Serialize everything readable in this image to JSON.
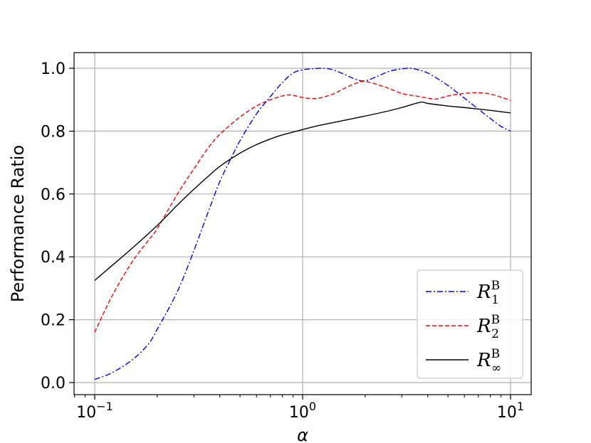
{
  "chart_data": {
    "type": "line",
    "xscale": "log",
    "xlim": [
      0.1,
      10
    ],
    "ylim": [
      0.0,
      1.0
    ],
    "xlabel": "α",
    "ylabel": "Performance Ratio",
    "xticks": [
      {
        "value": 0.1,
        "base": "10",
        "exp": "−1"
      },
      {
        "value": 1,
        "base": "10",
        "exp": "0"
      },
      {
        "value": 10,
        "base": "10",
        "exp": "1"
      }
    ],
    "yticks": [
      {
        "value": 0.0,
        "label": "0.0"
      },
      {
        "value": 0.2,
        "label": "0.2"
      },
      {
        "value": 0.4,
        "label": "0.4"
      },
      {
        "value": 0.6,
        "label": "0.6"
      },
      {
        "value": 0.8,
        "label": "0.8"
      },
      {
        "value": 1.0,
        "label": "1.0"
      }
    ],
    "grid": true,
    "legend_position": "lower-right",
    "series": [
      {
        "name": "R",
        "name_sup": "B",
        "name_sub": "1",
        "color": "#0000ff",
        "style": "dashdot",
        "x": [
          0.1,
          0.12,
          0.15,
          0.18,
          0.2,
          0.25,
          0.3,
          0.35,
          0.4,
          0.45,
          0.5,
          0.6,
          0.7,
          0.8,
          0.9,
          1.0,
          1.1,
          1.25,
          1.4,
          1.6,
          1.8,
          2.0,
          2.3,
          2.6,
          3.0,
          3.3,
          3.6,
          4.0,
          4.5,
          5.0,
          6.0,
          7.0,
          8.0,
          9.0,
          10.0
        ],
        "y": [
          0.01,
          0.03,
          0.07,
          0.12,
          0.17,
          0.29,
          0.42,
          0.54,
          0.64,
          0.71,
          0.77,
          0.855,
          0.91,
          0.955,
          0.985,
          0.995,
          0.998,
          1.0,
          0.995,
          0.98,
          0.965,
          0.96,
          0.975,
          0.99,
          0.998,
          1.0,
          0.995,
          0.985,
          0.965,
          0.945,
          0.905,
          0.87,
          0.84,
          0.815,
          0.8
        ]
      },
      {
        "name": "R",
        "name_sup": "B",
        "name_sub": "2",
        "color": "#ff0000",
        "style": "dashed",
        "x": [
          0.1,
          0.12,
          0.15,
          0.18,
          0.2,
          0.25,
          0.3,
          0.35,
          0.4,
          0.5,
          0.6,
          0.7,
          0.8,
          0.85,
          0.9,
          1.0,
          1.1,
          1.2,
          1.4,
          1.6,
          1.8,
          2.0,
          2.5,
          3.0,
          3.5,
          4.0,
          4.4,
          5.0,
          6.0,
          7.0,
          8.0,
          9.0,
          10.0
        ],
        "y": [
          0.16,
          0.27,
          0.38,
          0.45,
          0.49,
          0.6,
          0.68,
          0.745,
          0.79,
          0.845,
          0.88,
          0.9,
          0.912,
          0.915,
          0.914,
          0.907,
          0.904,
          0.905,
          0.918,
          0.937,
          0.952,
          0.958,
          0.94,
          0.92,
          0.912,
          0.905,
          0.902,
          0.912,
          0.92,
          0.922,
          0.918,
          0.908,
          0.898
        ]
      },
      {
        "name": "R",
        "name_sup": "B",
        "name_sub": "∞",
        "color": "#000000",
        "style": "solid",
        "x": [
          0.1,
          0.12,
          0.15,
          0.2,
          0.25,
          0.3,
          0.35,
          0.4,
          0.5,
          0.6,
          0.7,
          0.8,
          1.0,
          1.2,
          1.5,
          2.0,
          2.5,
          3.0,
          3.7,
          4.0,
          5.0,
          6.0,
          7.0,
          8.0,
          10.0
        ],
        "y": [
          0.325,
          0.37,
          0.425,
          0.5,
          0.565,
          0.615,
          0.655,
          0.688,
          0.73,
          0.757,
          0.775,
          0.788,
          0.805,
          0.818,
          0.831,
          0.848,
          0.862,
          0.875,
          0.892,
          0.888,
          0.88,
          0.875,
          0.87,
          0.866,
          0.858
        ]
      }
    ]
  }
}
